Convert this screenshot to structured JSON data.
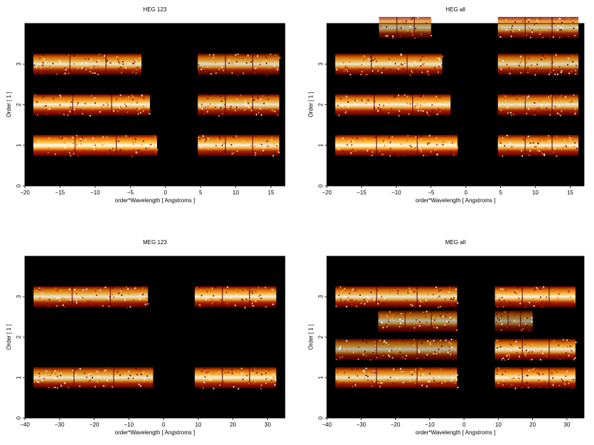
{
  "chart_data": [
    {
      "type": "heatmap",
      "title": "HEG 123",
      "xlabel": "order*Wavelength [ Angstroms ]",
      "ylabel": "Order [ 1 ]",
      "xlim": [
        -20,
        17
      ],
      "ylim": [
        0,
        4
      ],
      "xticks": [
        -20,
        -15,
        -10,
        -5,
        0,
        5,
        10,
        15
      ],
      "yticks": [
        0,
        1,
        2,
        3
      ],
      "colormap": [
        "#000000",
        "#5a0000",
        "#b32000",
        "#f07000",
        "#ffc040",
        "#ffffff"
      ],
      "bands": [
        {
          "order": 1,
          "x0": -18.8,
          "x1": -1.2,
          "gap_start": 2.0,
          "intensity": 1.0
        },
        {
          "order": 1,
          "x0": 4.6,
          "x1": 16.2,
          "gap_start": 0,
          "intensity": 0.95
        },
        {
          "order": 2,
          "x0": -18.8,
          "x1": -2.2,
          "gap_start": 0,
          "intensity": 0.95
        },
        {
          "order": 2,
          "x0": 4.6,
          "x1": 16.2,
          "gap_start": 0,
          "intensity": 0.9
        },
        {
          "order": 3,
          "x0": -18.8,
          "x1": -3.4,
          "gap_start": 0,
          "intensity": 0.9
        },
        {
          "order": 3,
          "x0": 4.6,
          "x1": 16.2,
          "gap_start": 0,
          "intensity": 0.85
        }
      ]
    },
    {
      "type": "heatmap",
      "title": "HEG all",
      "xlabel": "order*Wavelength [ Angstroms ]",
      "ylabel": "Order [ 1 ]",
      "xlim": [
        -20,
        17
      ],
      "ylim": [
        0,
        4
      ],
      "xticks": [
        -20,
        -15,
        -10,
        -5,
        0,
        5,
        10,
        15
      ],
      "yticks": [
        0,
        1,
        2,
        3
      ],
      "colormap": [
        "#000000",
        "#5a0000",
        "#b32000",
        "#f07000",
        "#ffc040",
        "#ffffff"
      ],
      "bands": [
        {
          "order": 1,
          "x0": -18.8,
          "x1": -1.2,
          "gap_start": 0,
          "intensity": 1.0
        },
        {
          "order": 1,
          "x0": 4.6,
          "x1": 16.2,
          "gap_start": 0,
          "intensity": 0.95
        },
        {
          "order": 2,
          "x0": -18.8,
          "x1": -2.2,
          "gap_start": 0,
          "intensity": 0.95
        },
        {
          "order": 2,
          "x0": 4.6,
          "x1": 16.2,
          "gap_start": 0,
          "intensity": 0.9
        },
        {
          "order": 3,
          "x0": -18.8,
          "x1": -3.4,
          "gap_start": 0,
          "intensity": 0.9
        },
        {
          "order": 3,
          "x0": 4.6,
          "x1": 16.2,
          "gap_start": 0,
          "intensity": 0.85
        },
        {
          "order": 3.9,
          "x0": -12.5,
          "x1": -5.0,
          "gap_start": 0,
          "intensity": 0.7
        },
        {
          "order": 3.9,
          "x0": 4.6,
          "x1": 16.2,
          "gap_start": 0,
          "intensity": 0.8
        }
      ]
    },
    {
      "type": "heatmap",
      "title": "MEG 123",
      "xlabel": "order*Wavelength [ Angstroms ]",
      "ylabel": "Order [ 1 ]",
      "xlim": [
        -40,
        35
      ],
      "ylim": [
        0,
        4
      ],
      "xticks": [
        -40,
        -30,
        -20,
        -10,
        0,
        10,
        20,
        30
      ],
      "yticks": [
        0,
        1,
        2,
        3
      ],
      "colormap": [
        "#000000",
        "#5a0000",
        "#b32000",
        "#f07000",
        "#ffc040",
        "#ffffff"
      ],
      "bands": [
        {
          "order": 1,
          "x0": -37.5,
          "x1": -3.0,
          "gap_start": 0,
          "intensity": 0.9
        },
        {
          "order": 1,
          "x0": 9.0,
          "x1": 32.5,
          "gap_start": 0,
          "intensity": 0.95
        },
        {
          "order": 3,
          "x0": -37.5,
          "x1": -4.5,
          "gap_start": 0,
          "intensity": 0.9
        },
        {
          "order": 3,
          "x0": 9.0,
          "x1": 32.5,
          "gap_start": 0,
          "intensity": 0.95
        }
      ]
    },
    {
      "type": "heatmap",
      "title": "MEG all",
      "xlabel": "order*Wavelength [ Angstroms ]",
      "ylabel": "Order [ 1 ]",
      "xlim": [
        -40,
        35
      ],
      "ylim": [
        0,
        4
      ],
      "xticks": [
        -40,
        -30,
        -20,
        -10,
        0,
        10,
        20,
        30
      ],
      "yticks": [
        0,
        1,
        2,
        3
      ],
      "colormap": [
        "#000000",
        "#5a0000",
        "#b32000",
        "#f07000",
        "#ffc040",
        "#ffffff"
      ],
      "bands": [
        {
          "order": 1,
          "x0": -37.5,
          "x1": -2.0,
          "gap_start": 0,
          "intensity": 0.9
        },
        {
          "order": 1,
          "x0": 9.0,
          "x1": 32.5,
          "gap_start": 0,
          "intensity": 0.95
        },
        {
          "order": 1.7,
          "x0": -37.5,
          "x1": -2.0,
          "gap_start": 0,
          "intensity": 0.7
        },
        {
          "order": 1.7,
          "x0": 9.0,
          "x1": 32.5,
          "gap_start": 0,
          "intensity": 0.9
        },
        {
          "order": 2.4,
          "x0": -25.0,
          "x1": -2.0,
          "gap_start": 0,
          "intensity": 0.7
        },
        {
          "order": 2.4,
          "x0": 9.0,
          "x1": 20.0,
          "gap_start": 0,
          "intensity": 0.6
        },
        {
          "order": 3,
          "x0": -37.5,
          "x1": -2.0,
          "gap_start": 0,
          "intensity": 0.9
        },
        {
          "order": 3,
          "x0": 9.0,
          "x1": 32.5,
          "gap_start": 0,
          "intensity": 0.95
        }
      ]
    }
  ]
}
